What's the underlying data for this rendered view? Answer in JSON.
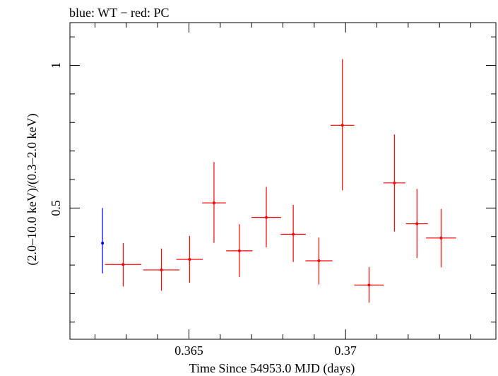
{
  "chart_data": {
    "type": "scatter",
    "title": "blue: WT − red: PC",
    "xlabel": "Time Since 54953.0 MJD (days)",
    "ylabel": "(2.0–10.0 keV)/(0.3–2.0 keV)",
    "xlim": [
      0.3612,
      0.3748
    ],
    "ylim": [
      0.04,
      1.15
    ],
    "x_ticks": [
      {
        "value": 0.365,
        "label": "0.365"
      },
      {
        "value": 0.37,
        "label": "0.37"
      }
    ],
    "x_minor_step": 0.001,
    "y_ticks": [
      {
        "value": 0.5,
        "label": "0.5"
      },
      {
        "value": 1.0,
        "label": "1"
      }
    ],
    "y_minor_step": 0.1,
    "grid": false,
    "legend": "none",
    "series": [
      {
        "color": "#0000ff",
        "points": [
          {
            "x": 0.36224,
            "xerr": 2e-05,
            "y": 0.377,
            "yerr_low": 0.106,
            "yerr_high": 0.123
          }
        ]
      },
      {
        "color": "#ff0000",
        "points": [
          {
            "x": 0.3629,
            "xerr": 0.00058,
            "y": 0.302,
            "yerr_low": 0.077,
            "yerr_high": 0.075
          },
          {
            "x": 0.36412,
            "xerr": 0.00058,
            "y": 0.283,
            "yerr_low": 0.073,
            "yerr_high": 0.075
          },
          {
            "x": 0.36502,
            "xerr": 0.00042,
            "y": 0.32,
            "yerr_low": 0.082,
            "yerr_high": 0.082
          },
          {
            "x": 0.3658,
            "xerr": 0.00038,
            "y": 0.518,
            "yerr_low": 0.14,
            "yerr_high": 0.143
          },
          {
            "x": 0.36661,
            "xerr": 0.00042,
            "y": 0.35,
            "yerr_low": 0.092,
            "yerr_high": 0.093
          },
          {
            "x": 0.36747,
            "xerr": 0.00047,
            "y": 0.467,
            "yerr_low": 0.105,
            "yerr_high": 0.107
          },
          {
            "x": 0.36833,
            "xerr": 0.0004,
            "y": 0.408,
            "yerr_low": 0.097,
            "yerr_high": 0.103
          },
          {
            "x": 0.36915,
            "xerr": 0.00043,
            "y": 0.315,
            "yerr_low": 0.083,
            "yerr_high": 0.082
          },
          {
            "x": 0.3699,
            "xerr": 0.00038,
            "y": 0.79,
            "yerr_low": 0.228,
            "yerr_high": 0.232
          },
          {
            "x": 0.37075,
            "xerr": 0.00047,
            "y": 0.23,
            "yerr_low": 0.062,
            "yerr_high": 0.063
          },
          {
            "x": 0.37156,
            "xerr": 0.00035,
            "y": 0.588,
            "yerr_low": 0.17,
            "yerr_high": 0.17
          },
          {
            "x": 0.37228,
            "xerr": 0.00035,
            "y": 0.445,
            "yerr_low": 0.12,
            "yerr_high": 0.122
          },
          {
            "x": 0.37305,
            "xerr": 0.00048,
            "y": 0.395,
            "yerr_low": 0.103,
            "yerr_high": 0.102
          }
        ]
      }
    ]
  }
}
